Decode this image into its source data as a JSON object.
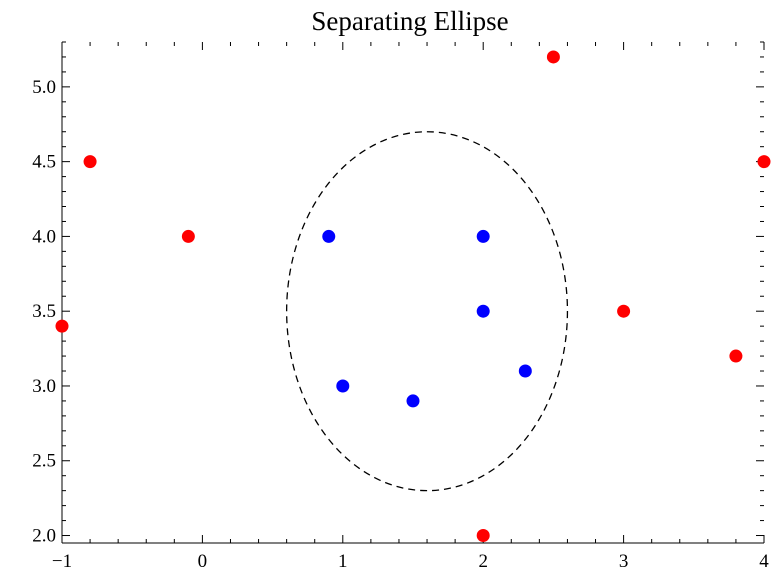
{
  "chart_data": {
    "type": "scatter",
    "title": "Separating Ellipse",
    "xlabel": "",
    "ylabel": "",
    "xlim": [
      -1,
      4
    ],
    "ylim": [
      1.95,
      5.3
    ],
    "x_ticks": [
      -1,
      0,
      1,
      2,
      3,
      4
    ],
    "x_tick_labels": [
      "−1",
      "0",
      "1",
      "2",
      "3",
      "4"
    ],
    "y_ticks": [
      2.0,
      2.5,
      3.0,
      3.5,
      4.0,
      4.5,
      5.0
    ],
    "y_tick_labels": [
      "2.0",
      "2.5",
      "3.0",
      "3.5",
      "4.0",
      "4.5",
      "5.0"
    ],
    "grid": false,
    "frame": true,
    "series": [
      {
        "color": "#ff0000",
        "points": [
          [
            -0.8,
            4.5
          ],
          [
            -0.1,
            4.0
          ],
          [
            -1.0,
            3.4
          ],
          [
            2.5,
            5.2
          ],
          [
            4.0,
            4.5
          ],
          [
            3.0,
            3.5
          ],
          [
            3.8,
            3.2
          ],
          [
            2.0,
            2.0
          ]
        ]
      },
      {
        "color": "#0000ff",
        "points": [
          [
            0.9,
            4.0
          ],
          [
            2.0,
            4.0
          ],
          [
            2.0,
            3.5
          ],
          [
            1.0,
            3.0
          ],
          [
            1.5,
            2.9
          ],
          [
            2.3,
            3.1
          ]
        ]
      }
    ],
    "ellipse": {
      "center": [
        1.6,
        3.5
      ],
      "radius_x": 1.0,
      "radius_y": 1.2,
      "style": "dashed",
      "color": "#000000"
    }
  }
}
